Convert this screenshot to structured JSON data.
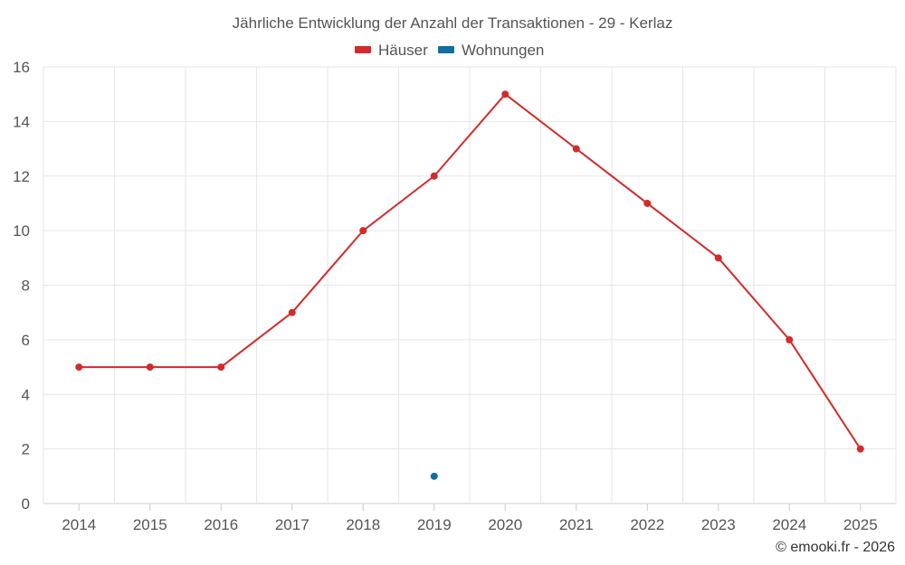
{
  "chart_data": {
    "type": "line",
    "title": "Jährliche Entwicklung der Anzahl der Transaktionen - 29 - Kerlaz",
    "categories": [
      "2014",
      "2015",
      "2016",
      "2017",
      "2018",
      "2019",
      "2020",
      "2021",
      "2022",
      "2023",
      "2024",
      "2025"
    ],
    "ylim": [
      0,
      16
    ],
    "yticks": [
      0,
      2,
      4,
      6,
      8,
      10,
      12,
      14,
      16
    ],
    "grid": true,
    "legend_position": "top-center",
    "series": [
      {
        "name": "Häuser",
        "color": "#d42a2a",
        "values": [
          5,
          5,
          5,
          7,
          10,
          12,
          15,
          13,
          11,
          9,
          6,
          2
        ]
      },
      {
        "name": "Wohnungen",
        "color": "#0f6fa3",
        "values": [
          null,
          null,
          null,
          null,
          null,
          1,
          null,
          null,
          null,
          null,
          null,
          null
        ]
      }
    ],
    "xlabel": "",
    "ylabel": ""
  },
  "credit": "© emooki.fr - 2026"
}
